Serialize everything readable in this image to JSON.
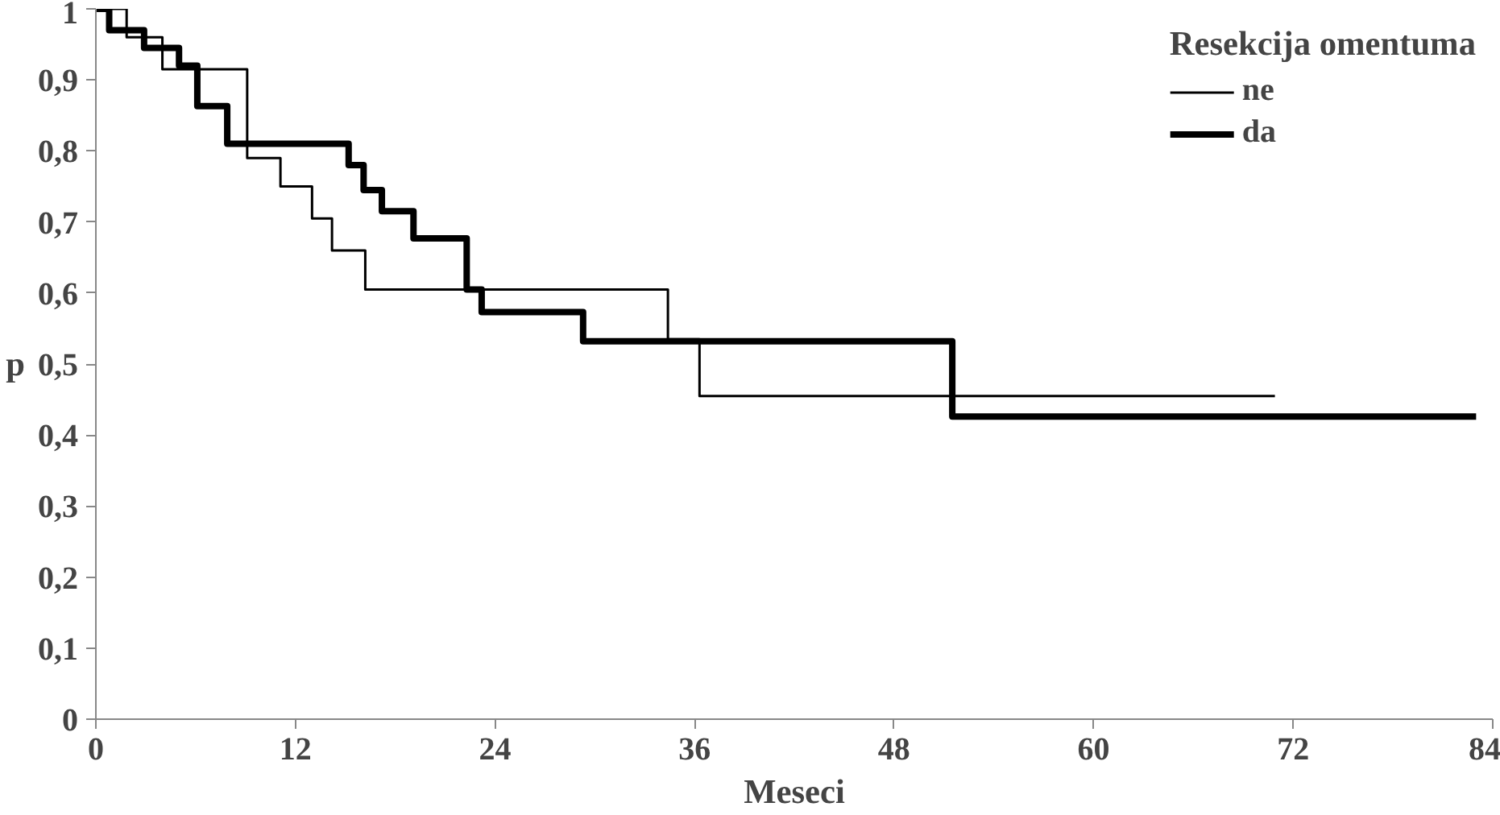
{
  "chart_data": {
    "type": "step",
    "xlabel": "Meseci",
    "ylabel": "p",
    "legend_title": "Resekcija omentuma",
    "legend": "top right",
    "grid": false,
    "xlim": [
      0,
      84
    ],
    "xticks": [
      0,
      12,
      24,
      36,
      48,
      60,
      72,
      84
    ],
    "ylim": [
      0,
      1
    ],
    "yticks": [
      0,
      {
        "value": 0.1,
        "label": "0,1"
      },
      {
        "value": 0.2,
        "label": "0,2"
      },
      {
        "value": 0.3,
        "label": "0,3"
      },
      {
        "value": 0.4,
        "label": "0,4"
      },
      {
        "value": 0.5,
        "label": "0,5"
      },
      {
        "value": 0.6,
        "label": "0,6"
      },
      {
        "value": 0.7,
        "label": "0,7"
      },
      {
        "value": 0.8,
        "label": "0,8"
      },
      {
        "value": 0.9,
        "label": "0,9"
      },
      1
    ],
    "series": [
      {
        "name": "ne",
        "color": "#000000",
        "x": [
          0,
          1.85,
          4.0,
          9.1,
          11.1,
          13.0,
          14.2,
          16.2,
          34.4,
          36.3,
          70.9
        ],
        "values": [
          1,
          0.96,
          0.915,
          0.79,
          0.75,
          0.705,
          0.66,
          0.605,
          0.535,
          0.455,
          0.455
        ]
      },
      {
        "name": "da",
        "color": "#000000",
        "x": [
          0,
          0.8,
          2.9,
          5.0,
          6.1,
          7.9,
          15.2,
          16.1,
          17.2,
          19.1,
          22.3,
          23.2,
          29.3,
          51.5,
          83
        ],
        "values": [
          1,
          0.97,
          0.945,
          0.92,
          0.863,
          0.81,
          0.78,
          0.745,
          0.715,
          0.677,
          0.605,
          0.573,
          0.532,
          0.426,
          0.426
        ]
      }
    ]
  }
}
